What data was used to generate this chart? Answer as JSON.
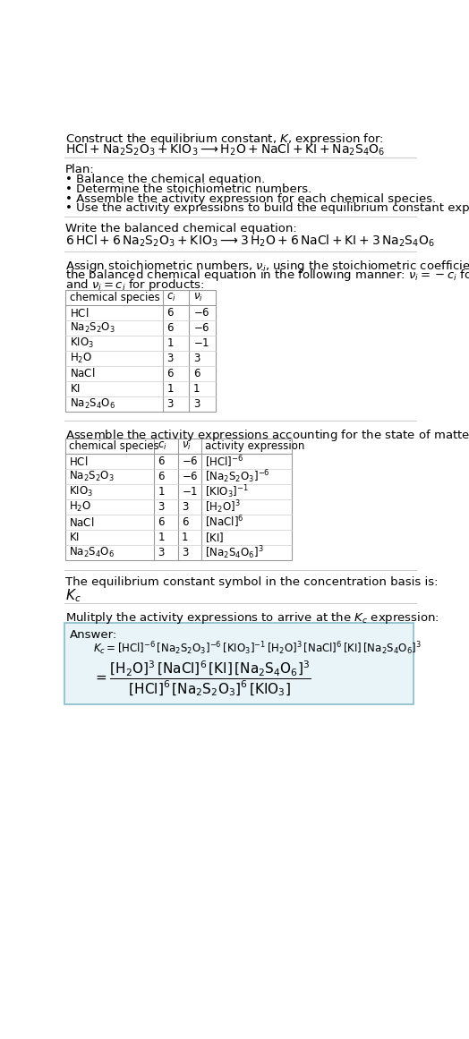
{
  "bg_color": "#ffffff",
  "text_color": "#000000",
  "title_line1": "Construct the equilibrium constant, $K$, expression for:",
  "title_line2": "$\\mathrm{HCl + Na_2S_2O_3 + KIO_3 \\longrightarrow H_2O + NaCl + KI + Na_2S_4O_6}$",
  "plan_header": "Plan:",
  "plan_items": [
    "Balance the chemical equation.",
    "Determine the stoichiometric numbers.",
    "Assemble the activity expression for each chemical species.",
    "Use the activity expressions to build the equilibrium constant expression."
  ],
  "balanced_eq_header": "Write the balanced chemical equation:",
  "balanced_eq": "$\\mathrm{6\\,HCl + 6\\,Na_2S_2O_3 + KIO_3 \\longrightarrow 3\\,H_2O + 6\\,NaCl + KI + 3\\,Na_2S_4O_6}$",
  "stoich_intro_lines": [
    "Assign stoichiometric numbers, $\\nu_i$, using the stoichiometric coefficients, $c_i$, from",
    "the balanced chemical equation in the following manner: $\\nu_i = -c_i$ for reactants",
    "and $\\nu_i = c_i$ for products:"
  ],
  "table1_headers": [
    "chemical species",
    "$c_i$",
    "$\\nu_i$"
  ],
  "table1_rows": [
    [
      "$\\mathrm{HCl}$",
      "6",
      "$-6$"
    ],
    [
      "$\\mathrm{Na_2S_2O_3}$",
      "6",
      "$-6$"
    ],
    [
      "$\\mathrm{KIO_3}$",
      "1",
      "$-1$"
    ],
    [
      "$\\mathrm{H_2O}$",
      "3",
      "3"
    ],
    [
      "$\\mathrm{NaCl}$",
      "6",
      "6"
    ],
    [
      "$\\mathrm{KI}$",
      "1",
      "1"
    ],
    [
      "$\\mathrm{Na_2S_4O_6}$",
      "3",
      "3"
    ]
  ],
  "activity_intro": "Assemble the activity expressions accounting for the state of matter and $\\nu_i$:",
  "table2_headers": [
    "chemical species",
    "$c_i$",
    "$\\nu_i$",
    "activity expression"
  ],
  "table2_rows": [
    [
      "$\\mathrm{HCl}$",
      "6",
      "$-6$",
      "$[\\mathrm{HCl}]^{-6}$"
    ],
    [
      "$\\mathrm{Na_2S_2O_3}$",
      "6",
      "$-6$",
      "$[\\mathrm{Na_2S_2O_3}]^{-6}$"
    ],
    [
      "$\\mathrm{KIO_3}$",
      "1",
      "$-1$",
      "$[\\mathrm{KIO_3}]^{-1}$"
    ],
    [
      "$\\mathrm{H_2O}$",
      "3",
      "3",
      "$[\\mathrm{H_2O}]^3$"
    ],
    [
      "$\\mathrm{NaCl}$",
      "6",
      "6",
      "$[\\mathrm{NaCl}]^6$"
    ],
    [
      "$\\mathrm{KI}$",
      "1",
      "1",
      "$[\\mathrm{KI}]$"
    ],
    [
      "$\\mathrm{Na_2S_4O_6}$",
      "3",
      "3",
      "$[\\mathrm{Na_2S_4O_6}]^3$"
    ]
  ],
  "kc_symbol_text": "The equilibrium constant symbol in the concentration basis is:",
  "kc_symbol": "$K_c$",
  "multiply_text": "Mulitply the activity expressions to arrive at the $K_c$ expression:",
  "answer_label": "Answer:",
  "answer_line1": "$K_c = [\\mathrm{HCl}]^{-6}\\,[\\mathrm{Na_2S_2O_3}]^{-6}\\,[\\mathrm{KIO_3}]^{-1}\\,[\\mathrm{H_2O}]^3\\,[\\mathrm{NaCl}]^6\\,[\\mathrm{KI}]\\,[\\mathrm{Na_2S_4O_6}]^3$",
  "answer_eq_lhs": "$= \\dfrac{[\\mathrm{H_2O}]^3\\,[\\mathrm{NaCl}]^6\\,[\\mathrm{KI}]\\,[\\mathrm{Na_2S_4O_6}]^3}{[\\mathrm{HCl}]^6\\,[\\mathrm{Na_2S_2O_3}]^6\\,[\\mathrm{KIO_3}]}$",
  "answer_box_color": "#e8f4f8",
  "answer_box_border": "#88bbcc"
}
